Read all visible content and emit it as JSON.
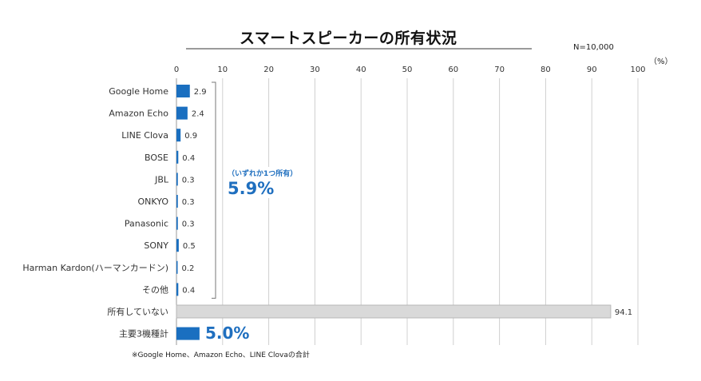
{
  "header": {
    "title": "スマートスピーカーの所有状況",
    "sample_size": "N=10,000",
    "unit": "（%）"
  },
  "callout": {
    "label": "（いずれか1つ所有）",
    "value": "5.9%"
  },
  "summary_value": "5.0%",
  "footnote": "※Google Home、Amazon Echo、LINE Clovaの合計",
  "colors": {
    "bar": "#1a6fc0",
    "not_owned_bar": "#d9d9d9",
    "grid": "#d0d0d0",
    "accent_text": "#1f6fbf"
  },
  "chart_data": {
    "type": "bar",
    "orientation": "horizontal",
    "title": "スマートスピーカーの所有状況",
    "xlabel": "",
    "ylabel": "",
    "xlim": [
      0,
      100
    ],
    "x_ticks": [
      0,
      10,
      20,
      30,
      40,
      50,
      60,
      70,
      80,
      90,
      100
    ],
    "grid": true,
    "categories": [
      "Google Home",
      "Amazon Echo",
      "LINE Clova",
      "BOSE",
      "JBL",
      "ONKYO",
      "Panasonic",
      "SONY",
      "Harman Kardon(ハーマンカードン)",
      "その他",
      "所有していない",
      "主要3機種計"
    ],
    "values": [
      2.9,
      2.4,
      0.9,
      0.4,
      0.3,
      0.3,
      0.3,
      0.5,
      0.2,
      0.4,
      94.1,
      5.0
    ],
    "value_labels": [
      "2.9",
      "2.4",
      "0.9",
      "0.4",
      "0.3",
      "0.3",
      "0.3",
      "0.5",
      "0.2",
      "0.4",
      "94.1",
      ""
    ],
    "bar_colors": [
      "#1a6fc0",
      "#1a6fc0",
      "#1a6fc0",
      "#1a6fc0",
      "#1a6fc0",
      "#1a6fc0",
      "#1a6fc0",
      "#1a6fc0",
      "#1a6fc0",
      "#1a6fc0",
      "#d9d9d9",
      "#1a6fc0"
    ]
  }
}
